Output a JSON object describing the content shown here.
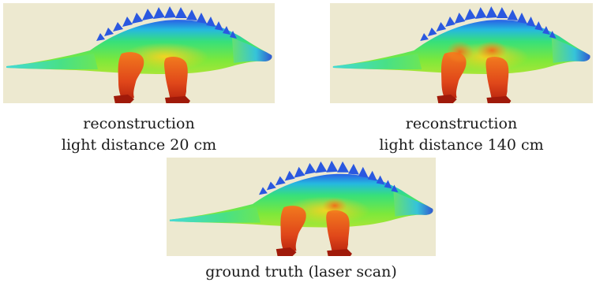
{
  "panels": [
    {
      "id": "reconstruction-20cm",
      "caption_line1": "reconstruction",
      "caption_line2": "light distance 20 cm"
    },
    {
      "id": "reconstruction-140cm",
      "caption_line1": "reconstruction",
      "caption_line2": "light distance 140 cm"
    },
    {
      "id": "ground-truth",
      "caption_line1": "ground truth (laser scan)",
      "caption_line2": ""
    }
  ],
  "colors": {
    "background": "#ede9d0",
    "depth_near": "#d93a10",
    "depth_mid": "#33e060",
    "depth_far": "#2a50e0"
  }
}
